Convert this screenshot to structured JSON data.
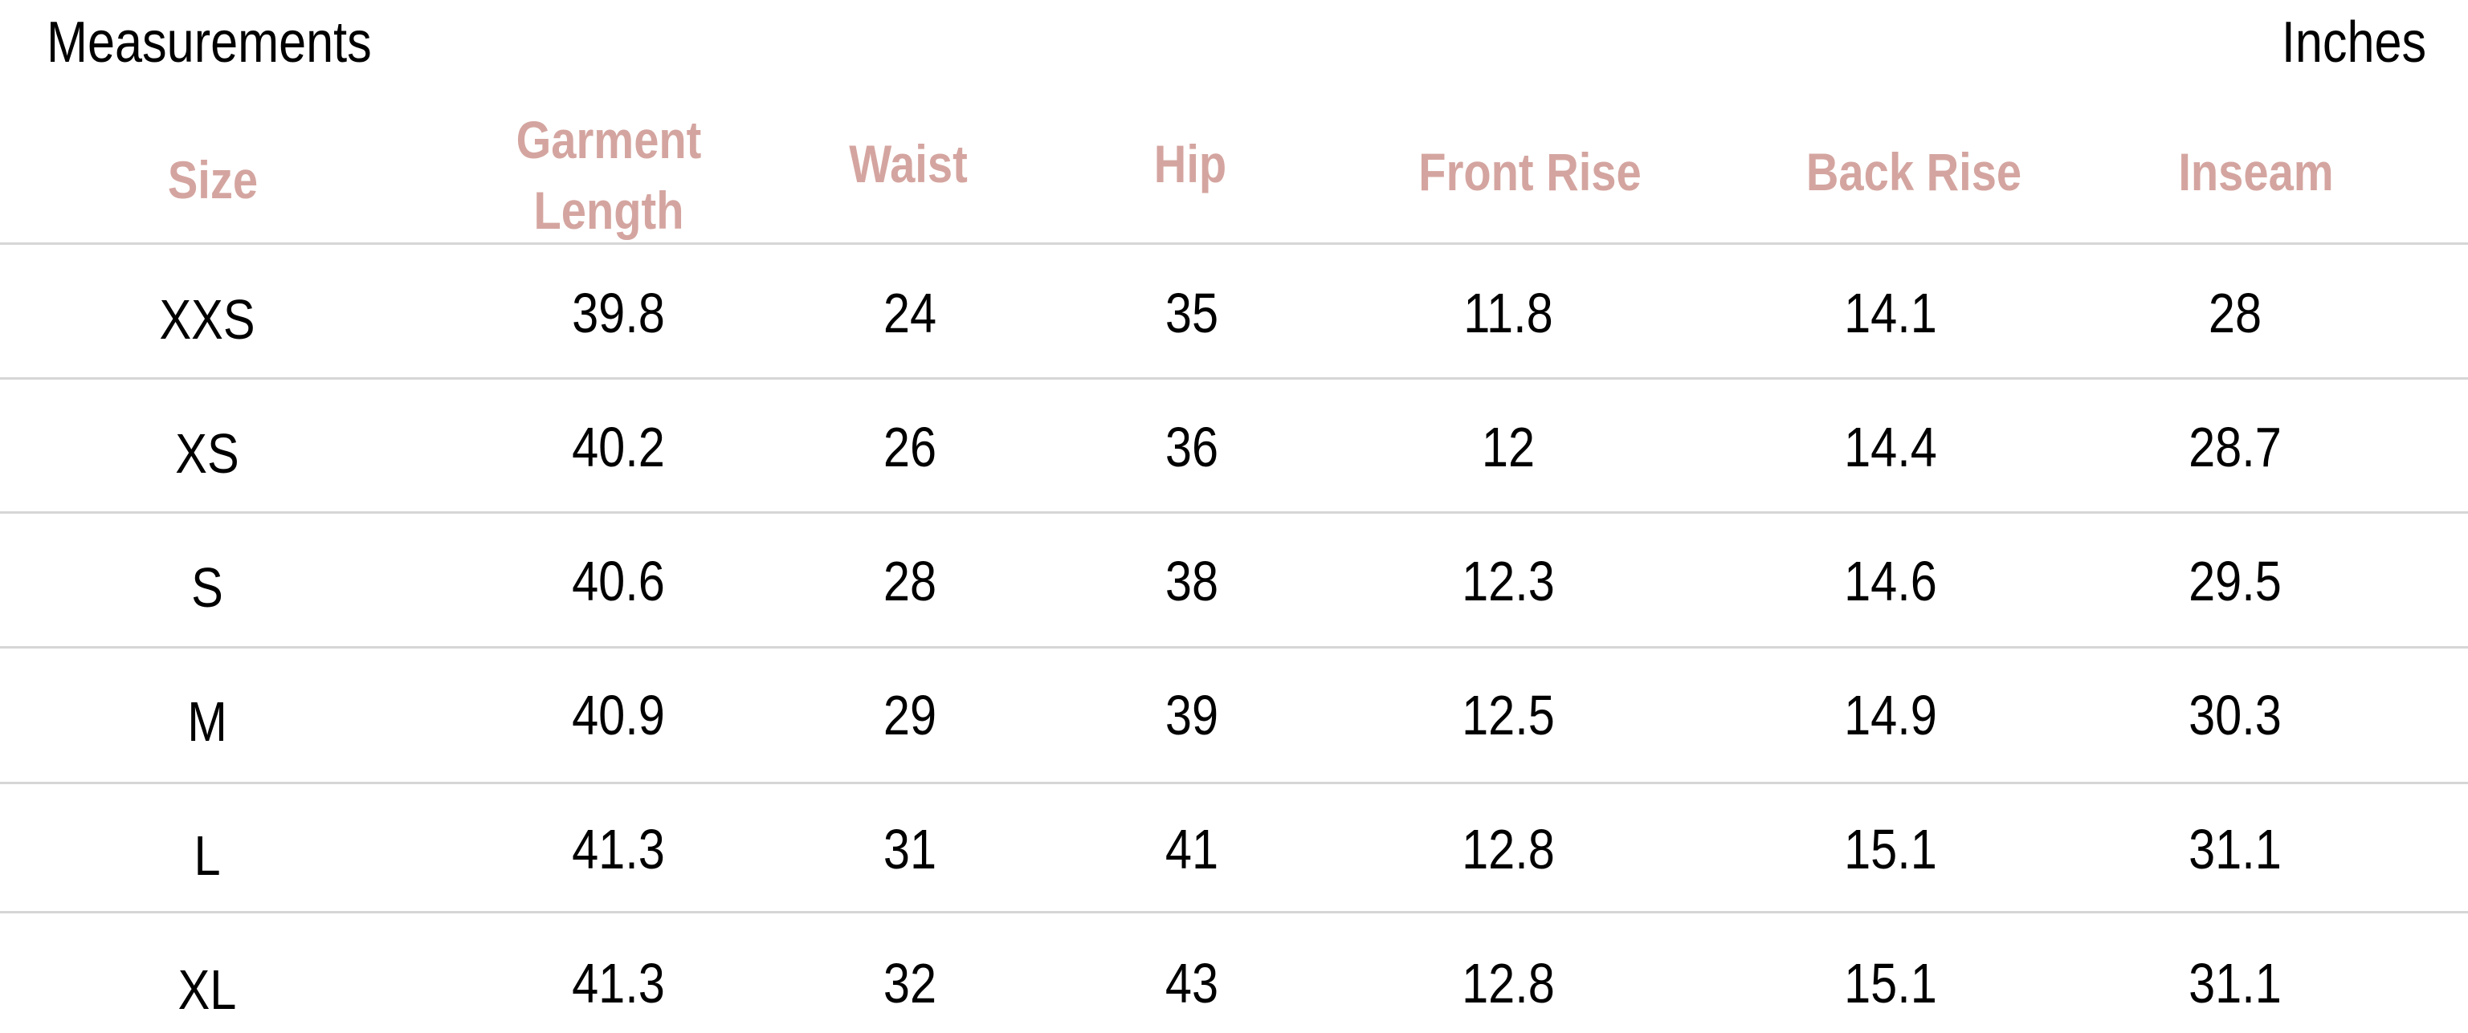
{
  "title": "Measurements",
  "unit": "Inches",
  "header_color": "#d4a5a0",
  "columns": [
    "Size",
    "Garment Length",
    "Waist",
    "Hip",
    "Front Rise",
    "Back Rise",
    "Inseam"
  ],
  "rows": [
    [
      "XXS",
      "39.8",
      "24",
      "35",
      "11.8",
      "14.1",
      "28"
    ],
    [
      "XS",
      "40.2",
      "26",
      "36",
      "12",
      "14.4",
      "28.7"
    ],
    [
      "S",
      "40.6",
      "28",
      "38",
      "12.3",
      "14.6",
      "29.5"
    ],
    [
      "M",
      "40.9",
      "29",
      "39",
      "12.5",
      "14.9",
      "30.3"
    ],
    [
      "L",
      "41.3",
      "31",
      "41",
      "12.8",
      "15.1",
      "31.1"
    ],
    [
      "XL",
      "41.3",
      "32",
      "43",
      "12.8",
      "15.1",
      "31.1"
    ]
  ]
}
